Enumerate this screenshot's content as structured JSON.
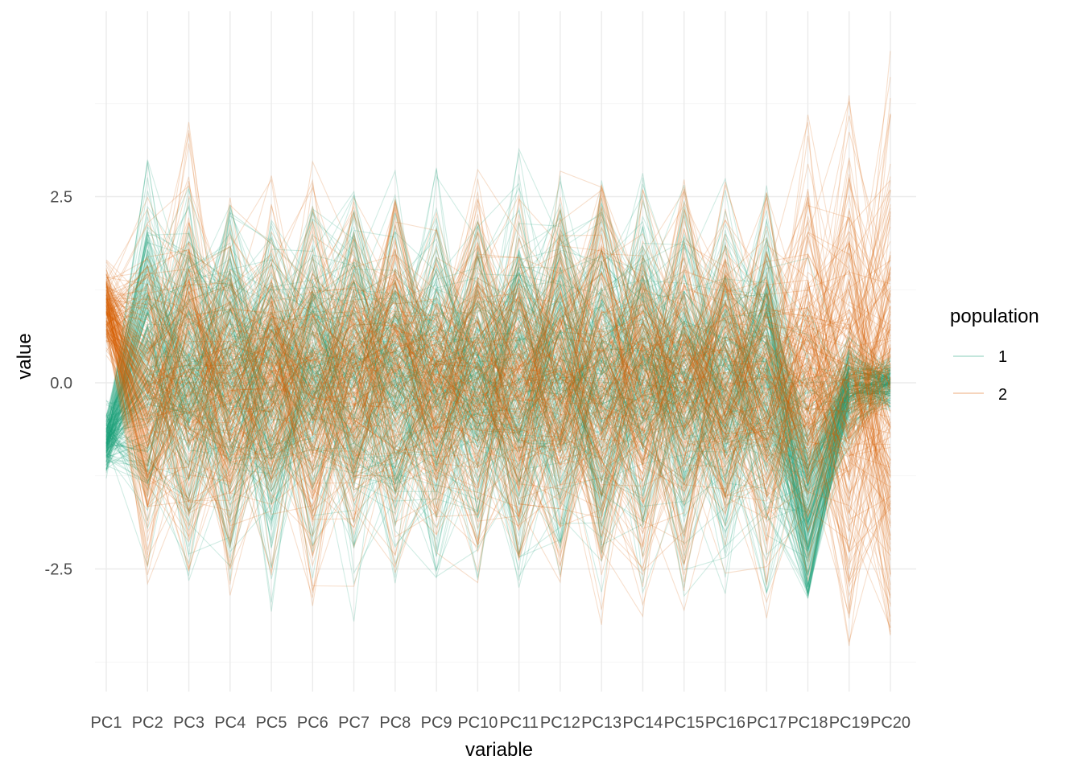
{
  "chart_data": {
    "type": "line",
    "subtype": "parallel-coordinates",
    "title": "",
    "xlabel": "variable",
    "ylabel": "value",
    "x": [
      "PC1",
      "PC2",
      "PC3",
      "PC4",
      "PC5",
      "PC6",
      "PC7",
      "PC8",
      "PC9",
      "PC10",
      "PC11",
      "PC12",
      "PC13",
      "PC14",
      "PC15",
      "PC16",
      "PC17",
      "PC18",
      "PC19",
      "PC20"
    ],
    "ylim": [
      -3.7,
      4.8
    ],
    "yticks": [
      -2.5,
      0.0,
      2.5
    ],
    "ytick_labels": [
      "-2.5",
      "0.0",
      "2.5"
    ],
    "grid": true,
    "legend": {
      "title": "population",
      "position": "right",
      "entries": [
        {
          "label": "1",
          "color": "#1b9e77"
        },
        {
          "label": "2",
          "color": "#d95f02"
        }
      ]
    },
    "series": [
      {
        "name": "1",
        "color": "#1b9e77",
        "line_opacity": 0.2,
        "typical_values": [
          -0.8,
          0.3,
          0.1,
          0.2,
          0.0,
          0.1,
          0.2,
          0.0,
          0.1,
          0.1,
          0.2,
          0.1,
          0.0,
          0.2,
          0.1,
          0.0,
          0.1,
          -1.6,
          -0.1,
          0.0
        ],
        "min_values": [
          -1.3,
          -2.5,
          -2.7,
          -3.4,
          -3.9,
          -2.9,
          -3.3,
          -2.8,
          -2.7,
          -2.8,
          -3.1,
          -3.0,
          -2.9,
          -3.0,
          -2.9,
          -2.9,
          -2.9,
          -2.9,
          -0.9,
          -0.4
        ],
        "max_values": [
          -0.2,
          3.1,
          2.8,
          2.4,
          2.2,
          2.4,
          2.6,
          2.9,
          2.9,
          2.2,
          3.2,
          2.8,
          2.8,
          2.9,
          3.3,
          2.8,
          2.7,
          2.1,
          0.7,
          0.5
        ]
      },
      {
        "name": "2",
        "color": "#d95f02",
        "line_opacity": 0.2,
        "typical_values": [
          1.0,
          -0.3,
          0.1,
          -0.2,
          0.2,
          -0.1,
          0.1,
          0.2,
          -0.1,
          0.1,
          -0.1,
          0.0,
          0.1,
          -0.1,
          0.0,
          0.1,
          -0.1,
          0.2,
          0.0,
          0.0
        ],
        "min_values": [
          0.3,
          -2.9,
          -2.6,
          -2.9,
          -2.6,
          -3.0,
          -3.0,
          -2.9,
          -2.6,
          -2.8,
          -2.4,
          -2.8,
          -3.7,
          -3.3,
          -3.6,
          -3.2,
          -3.4,
          -2.7,
          -3.7,
          -3.4
        ],
        "max_values": [
          1.7,
          2.5,
          3.7,
          2.5,
          2.8,
          3.1,
          2.5,
          2.5,
          2.4,
          2.9,
          3.1,
          3.1,
          2.7,
          2.6,
          2.8,
          2.7,
          2.6,
          3.6,
          3.9,
          4.6
        ]
      }
    ]
  }
}
